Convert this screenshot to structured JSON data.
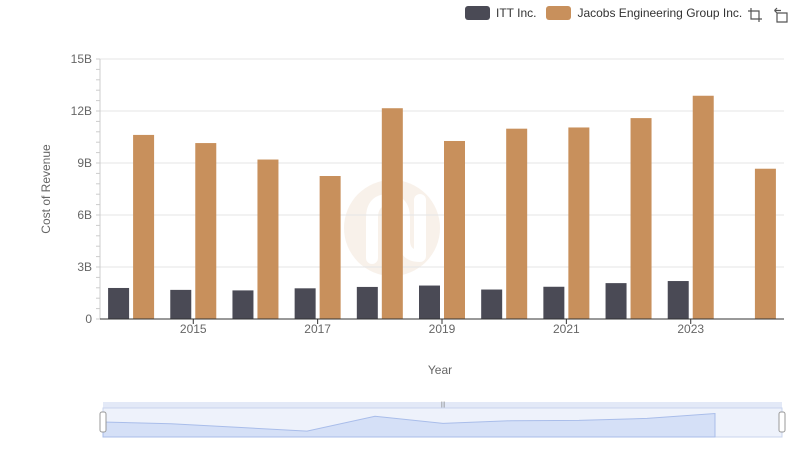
{
  "chart_data": {
    "type": "bar",
    "categories": [
      "2014",
      "2015",
      "2016",
      "2017",
      "2018",
      "2019",
      "2020",
      "2021",
      "2022",
      "2023",
      "2024"
    ],
    "series": [
      {
        "name": "ITT Inc.",
        "color": "#4a4a55",
        "values": [
          1.79,
          1.68,
          1.65,
          1.77,
          1.85,
          1.93,
          1.7,
          1.86,
          2.07,
          2.19,
          null
        ]
      },
      {
        "name": "Jacobs Engineering Group Inc.",
        "color": "#c8905c",
        "values": [
          10.62,
          10.15,
          9.2,
          8.25,
          12.16,
          10.27,
          10.98,
          11.05,
          11.59,
          12.88,
          8.67
        ]
      }
    ],
    "x_tick_labels": [
      "2015",
      "2017",
      "2019",
      "2021",
      "2023"
    ],
    "y_tick_labels": [
      "0",
      "3B",
      "6B",
      "9B",
      "12B",
      "15B"
    ],
    "y_ticks": [
      0,
      3,
      6,
      9,
      12,
      15
    ],
    "ylim": [
      0,
      15
    ],
    "xlabel": "Year",
    "ylabel": "Cost of Revenue",
    "grid": true,
    "legend_position": "top-right"
  },
  "toolbar": {
    "icons": [
      "select-icon",
      "reset-icon"
    ]
  },
  "navigator": {
    "fill": "#d5e0f7"
  }
}
